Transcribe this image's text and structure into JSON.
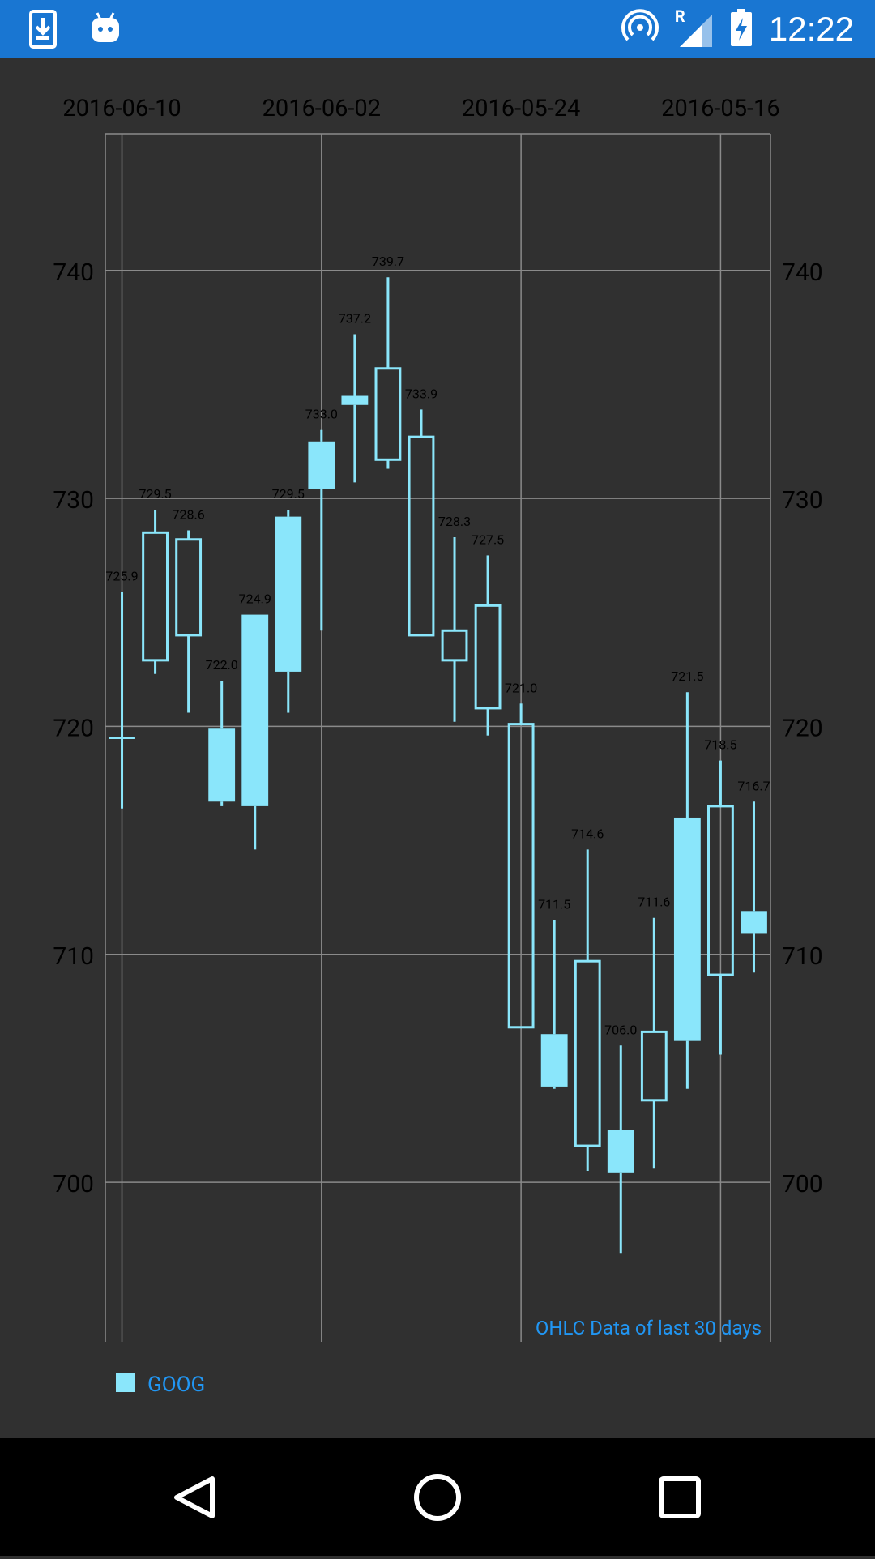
{
  "status_bar": {
    "time": "12:22",
    "network_label": "R",
    "icons": [
      "download-icon",
      "android-icon",
      "hotspot-icon",
      "signal-icon",
      "battery-charging-icon"
    ]
  },
  "colors": {
    "background": "#303030",
    "candle": "#8ae6fb",
    "grid": "#8a8a8a",
    "axis_text": "#000000",
    "desc_text": "#2196f3",
    "status_bar": "#1976d2",
    "nav_bar": "#000000"
  },
  "chart_data": {
    "type": "candlestick",
    "title": "OHLC Data of last 30 days",
    "xlabel": "",
    "ylabel": "",
    "x_tick_labels": [
      "2016-06-10",
      "2016-06-02",
      "2016-05-24",
      "2016-05-16"
    ],
    "x_tick_index": [
      0,
      6,
      12,
      18
    ],
    "y_ticks": [
      700,
      710,
      720,
      730,
      740
    ],
    "ylim": [
      693.0,
      746.0
    ],
    "grid": true,
    "x_axis": "top",
    "y_axis": "both",
    "legend": {
      "entries": [
        "GOOG"
      ],
      "placement": "bottom-left"
    },
    "series": [
      {
        "name": "GOOG",
        "candles": [
          {
            "open": 719.5,
            "close": 719.5,
            "high": 725.9,
            "low": 716.4,
            "label": "725.9"
          },
          {
            "open": 722.9,
            "close": 728.5,
            "high": 729.5,
            "low": 722.3,
            "label": "729.5"
          },
          {
            "open": 724.0,
            "close": 728.2,
            "high": 728.6,
            "low": 720.6,
            "label": "728.6"
          },
          {
            "open": 719.9,
            "close": 716.7,
            "high": 722.0,
            "low": 716.5,
            "label": "722.0"
          },
          {
            "open": 724.9,
            "close": 716.5,
            "high": 724.9,
            "low": 714.6,
            "label": "724.9"
          },
          {
            "open": 729.2,
            "close": 722.4,
            "high": 729.5,
            "low": 720.6,
            "label": "729.5"
          },
          {
            "open": 732.5,
            "close": 730.4,
            "high": 733.0,
            "low": 724.2,
            "label": "733.0"
          },
          {
            "open": 734.5,
            "close": 734.1,
            "high": 737.2,
            "low": 730.7,
            "label": "737.2"
          },
          {
            "open": 731.7,
            "close": 735.7,
            "high": 739.7,
            "low": 731.3,
            "label": "739.7"
          },
          {
            "open": 724.0,
            "close": 732.7,
            "high": 733.9,
            "low": 724.0,
            "label": "733.9"
          },
          {
            "open": 722.9,
            "close": 724.2,
            "high": 728.3,
            "low": 720.2,
            "label": "728.3"
          },
          {
            "open": 720.8,
            "close": 725.3,
            "high": 727.5,
            "low": 719.6,
            "label": "727.5"
          },
          {
            "open": 706.8,
            "close": 720.1,
            "high": 721.0,
            "low": 706.8,
            "label": "721.0"
          },
          {
            "open": 706.5,
            "close": 704.2,
            "high": 711.5,
            "low": 704.1,
            "label": "711.5"
          },
          {
            "open": 701.6,
            "close": 709.7,
            "high": 714.6,
            "low": 700.5,
            "label": "714.6"
          },
          {
            "open": 702.3,
            "close": 700.4,
            "high": 706.0,
            "low": 696.9,
            "label": "706.0"
          },
          {
            "open": 703.6,
            "close": 706.6,
            "high": 711.6,
            "low": 700.6,
            "label": "711.6"
          },
          {
            "open": 716.0,
            "close": 706.2,
            "high": 721.5,
            "low": 704.1,
            "label": "721.5"
          },
          {
            "open": 709.1,
            "close": 716.5,
            "high": 718.5,
            "low": 705.6,
            "label": "718.5"
          },
          {
            "open": 711.9,
            "close": 710.9,
            "high": 716.7,
            "low": 709.2,
            "label": "716.7"
          }
        ]
      }
    ]
  }
}
